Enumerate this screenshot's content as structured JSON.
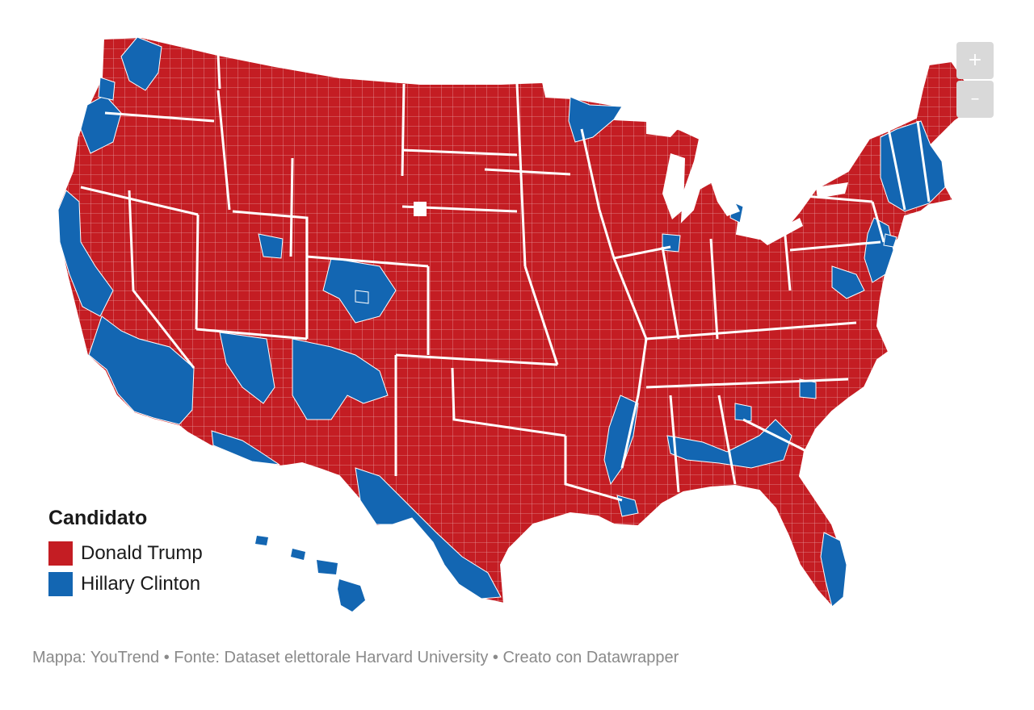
{
  "map": {
    "type": "choropleth",
    "region": "United States counties",
    "colors": {
      "trump": "#c41d23",
      "clinton": "#1366b2",
      "borders": "#ffffff",
      "no_data": "#ffffff"
    },
    "controls": {
      "zoom_in_label": "+",
      "zoom_out_label": "–"
    }
  },
  "legend": {
    "title": "Candidato",
    "items": [
      {
        "label": "Donald Trump",
        "color": "#c41d23"
      },
      {
        "label": "Hillary Clinton",
        "color": "#1366b2"
      }
    ]
  },
  "footer": {
    "text": "Mappa: YouTrend • Fonte: Dataset elettorale Harvard University • Creato con Datawrapper"
  }
}
